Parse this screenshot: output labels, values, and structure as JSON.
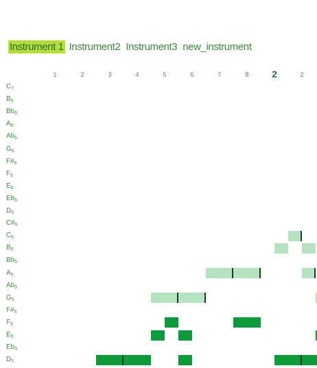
{
  "tabs": [
    {
      "label": "Instrument 1",
      "active": true
    },
    {
      "label": "Instrument2",
      "active": false
    },
    {
      "label": "Instrument3",
      "active": false
    },
    {
      "label": "new_instrument",
      "active": false
    }
  ],
  "beats": [
    "1",
    "2",
    "3",
    "4",
    "5",
    "6",
    "7",
    "8",
    "2",
    "2"
  ],
  "pitches": [
    {
      "name": "C",
      "oct": "7"
    },
    {
      "name": "B",
      "oct": "6"
    },
    {
      "name": "Bb",
      "oct": "6"
    },
    {
      "name": "A",
      "oct": "6"
    },
    {
      "name": "Ab",
      "oct": "6"
    },
    {
      "name": "G",
      "oct": "6"
    },
    {
      "name": "F#",
      "oct": "6"
    },
    {
      "name": "F",
      "oct": "6"
    },
    {
      "name": "E",
      "oct": "6"
    },
    {
      "name": "Eb",
      "oct": "6"
    },
    {
      "name": "D",
      "oct": "6"
    },
    {
      "name": "C#",
      "oct": "6"
    },
    {
      "name": "C",
      "oct": "6"
    },
    {
      "name": "B",
      "oct": "5"
    },
    {
      "name": "Bb",
      "oct": "5"
    },
    {
      "name": "A",
      "oct": "5"
    },
    {
      "name": "Ab",
      "oct": "5"
    },
    {
      "name": "G",
      "oct": "5"
    },
    {
      "name": "F#",
      "oct": "5"
    },
    {
      "name": "F",
      "oct": "5"
    },
    {
      "name": "E",
      "oct": "5"
    },
    {
      "name": "Eb",
      "oct": "5"
    },
    {
      "name": "D",
      "oct": "5"
    }
  ],
  "colors": {
    "selected_tab": "#b4dc3c",
    "note_light": "#b7e2c2",
    "note_dark": "#0e9a3a"
  },
  "notes": [
    {
      "row": 12,
      "start": 9.0,
      "len": 0.5,
      "style": "light",
      "edge": true
    },
    {
      "row": 13,
      "start": 8.5,
      "len": 0.5,
      "style": "light"
    },
    {
      "row": 13,
      "start": 9.5,
      "len": 0.5,
      "style": "light"
    },
    {
      "row": 15,
      "start": 6.0,
      "len": 1.0,
      "style": "light",
      "edge": true
    },
    {
      "row": 15,
      "start": 7.0,
      "len": 1.0,
      "style": "light",
      "edge": true
    },
    {
      "row": 15,
      "start": 9.5,
      "len": 0.5,
      "style": "light",
      "edge": true
    },
    {
      "row": 17,
      "start": 4.0,
      "len": 1.0,
      "style": "light",
      "edge": true
    },
    {
      "row": 17,
      "start": 5.0,
      "len": 1.0,
      "style": "light",
      "edge": true
    },
    {
      "row": 17,
      "start": 10.0,
      "len": 0.1,
      "style": "light"
    },
    {
      "row": 19,
      "start": 4.5,
      "len": 0.5,
      "style": "dark"
    },
    {
      "row": 19,
      "start": 7.0,
      "len": 1.0,
      "style": "dark"
    },
    {
      "row": 20,
      "start": 4.0,
      "len": 0.5,
      "style": "dark"
    },
    {
      "row": 20,
      "start": 5.0,
      "len": 0.5,
      "style": "dark"
    },
    {
      "row": 20,
      "start": 10.0,
      "len": 0.1,
      "style": "dark"
    },
    {
      "row": 22,
      "start": 2.0,
      "len": 1.0,
      "style": "dark",
      "edge": true
    },
    {
      "row": 22,
      "start": 3.0,
      "len": 1.0,
      "style": "dark"
    },
    {
      "row": 22,
      "start": 5.0,
      "len": 0.5,
      "style": "dark"
    },
    {
      "row": 22,
      "start": 8.5,
      "len": 1.0,
      "style": "dark",
      "edge": true
    },
    {
      "row": 22,
      "start": 9.5,
      "len": 1.0,
      "style": "dark"
    }
  ]
}
